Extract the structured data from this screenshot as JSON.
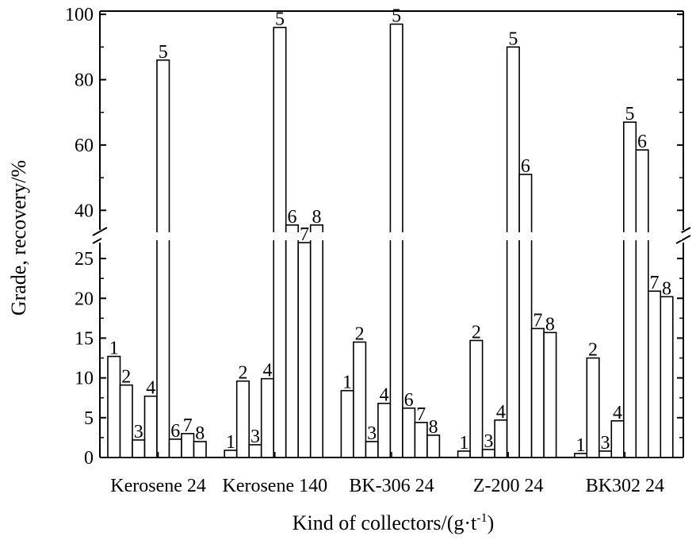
{
  "chart_data": {
    "type": "bar",
    "xlabel": "Kind of collectors/(g·t",
    "xlabel_sup": "-1",
    "xlabel_end": ")",
    "ylabel": "Grade, recovery/%",
    "y_axis_broken": true,
    "y_lower_range": [
      0,
      27
    ],
    "y_upper_range": [
      34,
      101
    ],
    "y_ticks": [
      0,
      5,
      10,
      15,
      20,
      25,
      40,
      60,
      80,
      100
    ],
    "grid": false,
    "categories": [
      "Kerosene 24",
      "Kerosene 140",
      "BK-306 24",
      "Z-200 24",
      "BK302 24"
    ],
    "bar_labels": [
      "1",
      "2",
      "3",
      "4",
      "5",
      "6",
      "7",
      "8"
    ],
    "values": [
      [
        12.7,
        9.1,
        2.2,
        7.7,
        86.0,
        2.3,
        3.0,
        2.0
      ],
      [
        0.9,
        9.6,
        1.6,
        9.9,
        96.0,
        35.5,
        27.0,
        35.5
      ],
      [
        8.4,
        14.5,
        2.0,
        6.8,
        97.0,
        6.2,
        4.4,
        2.8
      ],
      [
        0.8,
        14.7,
        1.0,
        4.7,
        90.0,
        51.0,
        16.2,
        15.7
      ],
      [
        0.5,
        12.5,
        0.8,
        4.6,
        67.0,
        58.5,
        20.9,
        20.2
      ]
    ]
  }
}
